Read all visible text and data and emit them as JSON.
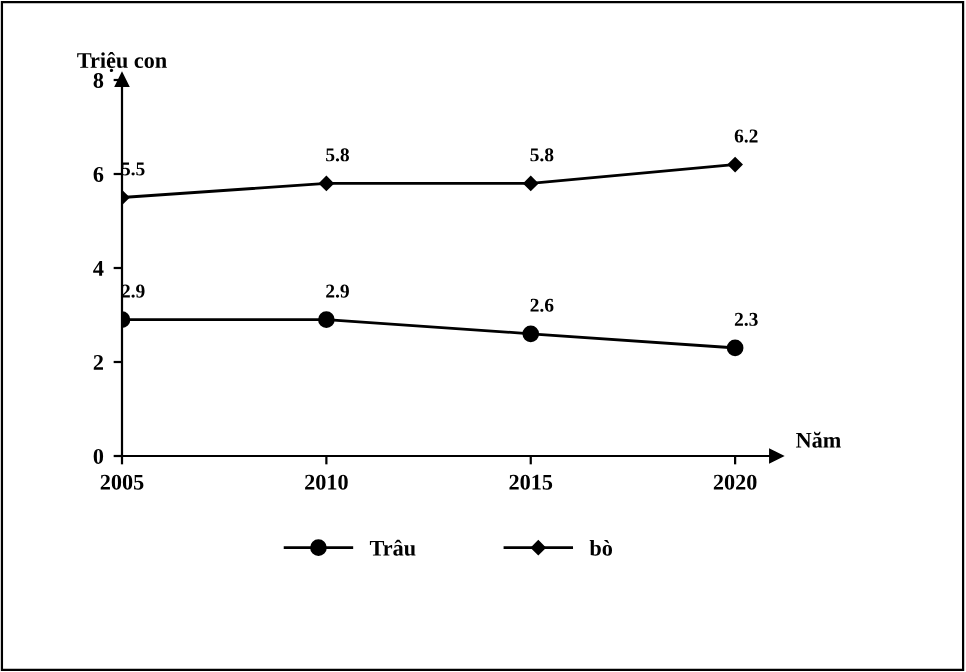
{
  "chart_data": {
    "type": "line",
    "xlabel": "Năm",
    "ylabel": "Triệu con",
    "x": [
      2005,
      2010,
      2015,
      2020
    ],
    "series": [
      {
        "name": "Trâu",
        "color": "#000000",
        "marker": "circle",
        "values": [
          2.9,
          2.9,
          2.6,
          2.3
        ]
      },
      {
        "name": "bò",
        "color": "#000000",
        "marker": "diamond",
        "values": [
          5.5,
          5.8,
          5.8,
          6.2
        ]
      }
    ],
    "xlim": [
      2005,
      2021
    ],
    "xticks": [
      2005,
      2010,
      2015,
      2020
    ],
    "ylim": [
      0,
      8
    ],
    "yticks": [
      0,
      2,
      4,
      6,
      8
    ],
    "data_labels": true,
    "grid": false,
    "legend": "bottom",
    "line_style": "solid"
  }
}
